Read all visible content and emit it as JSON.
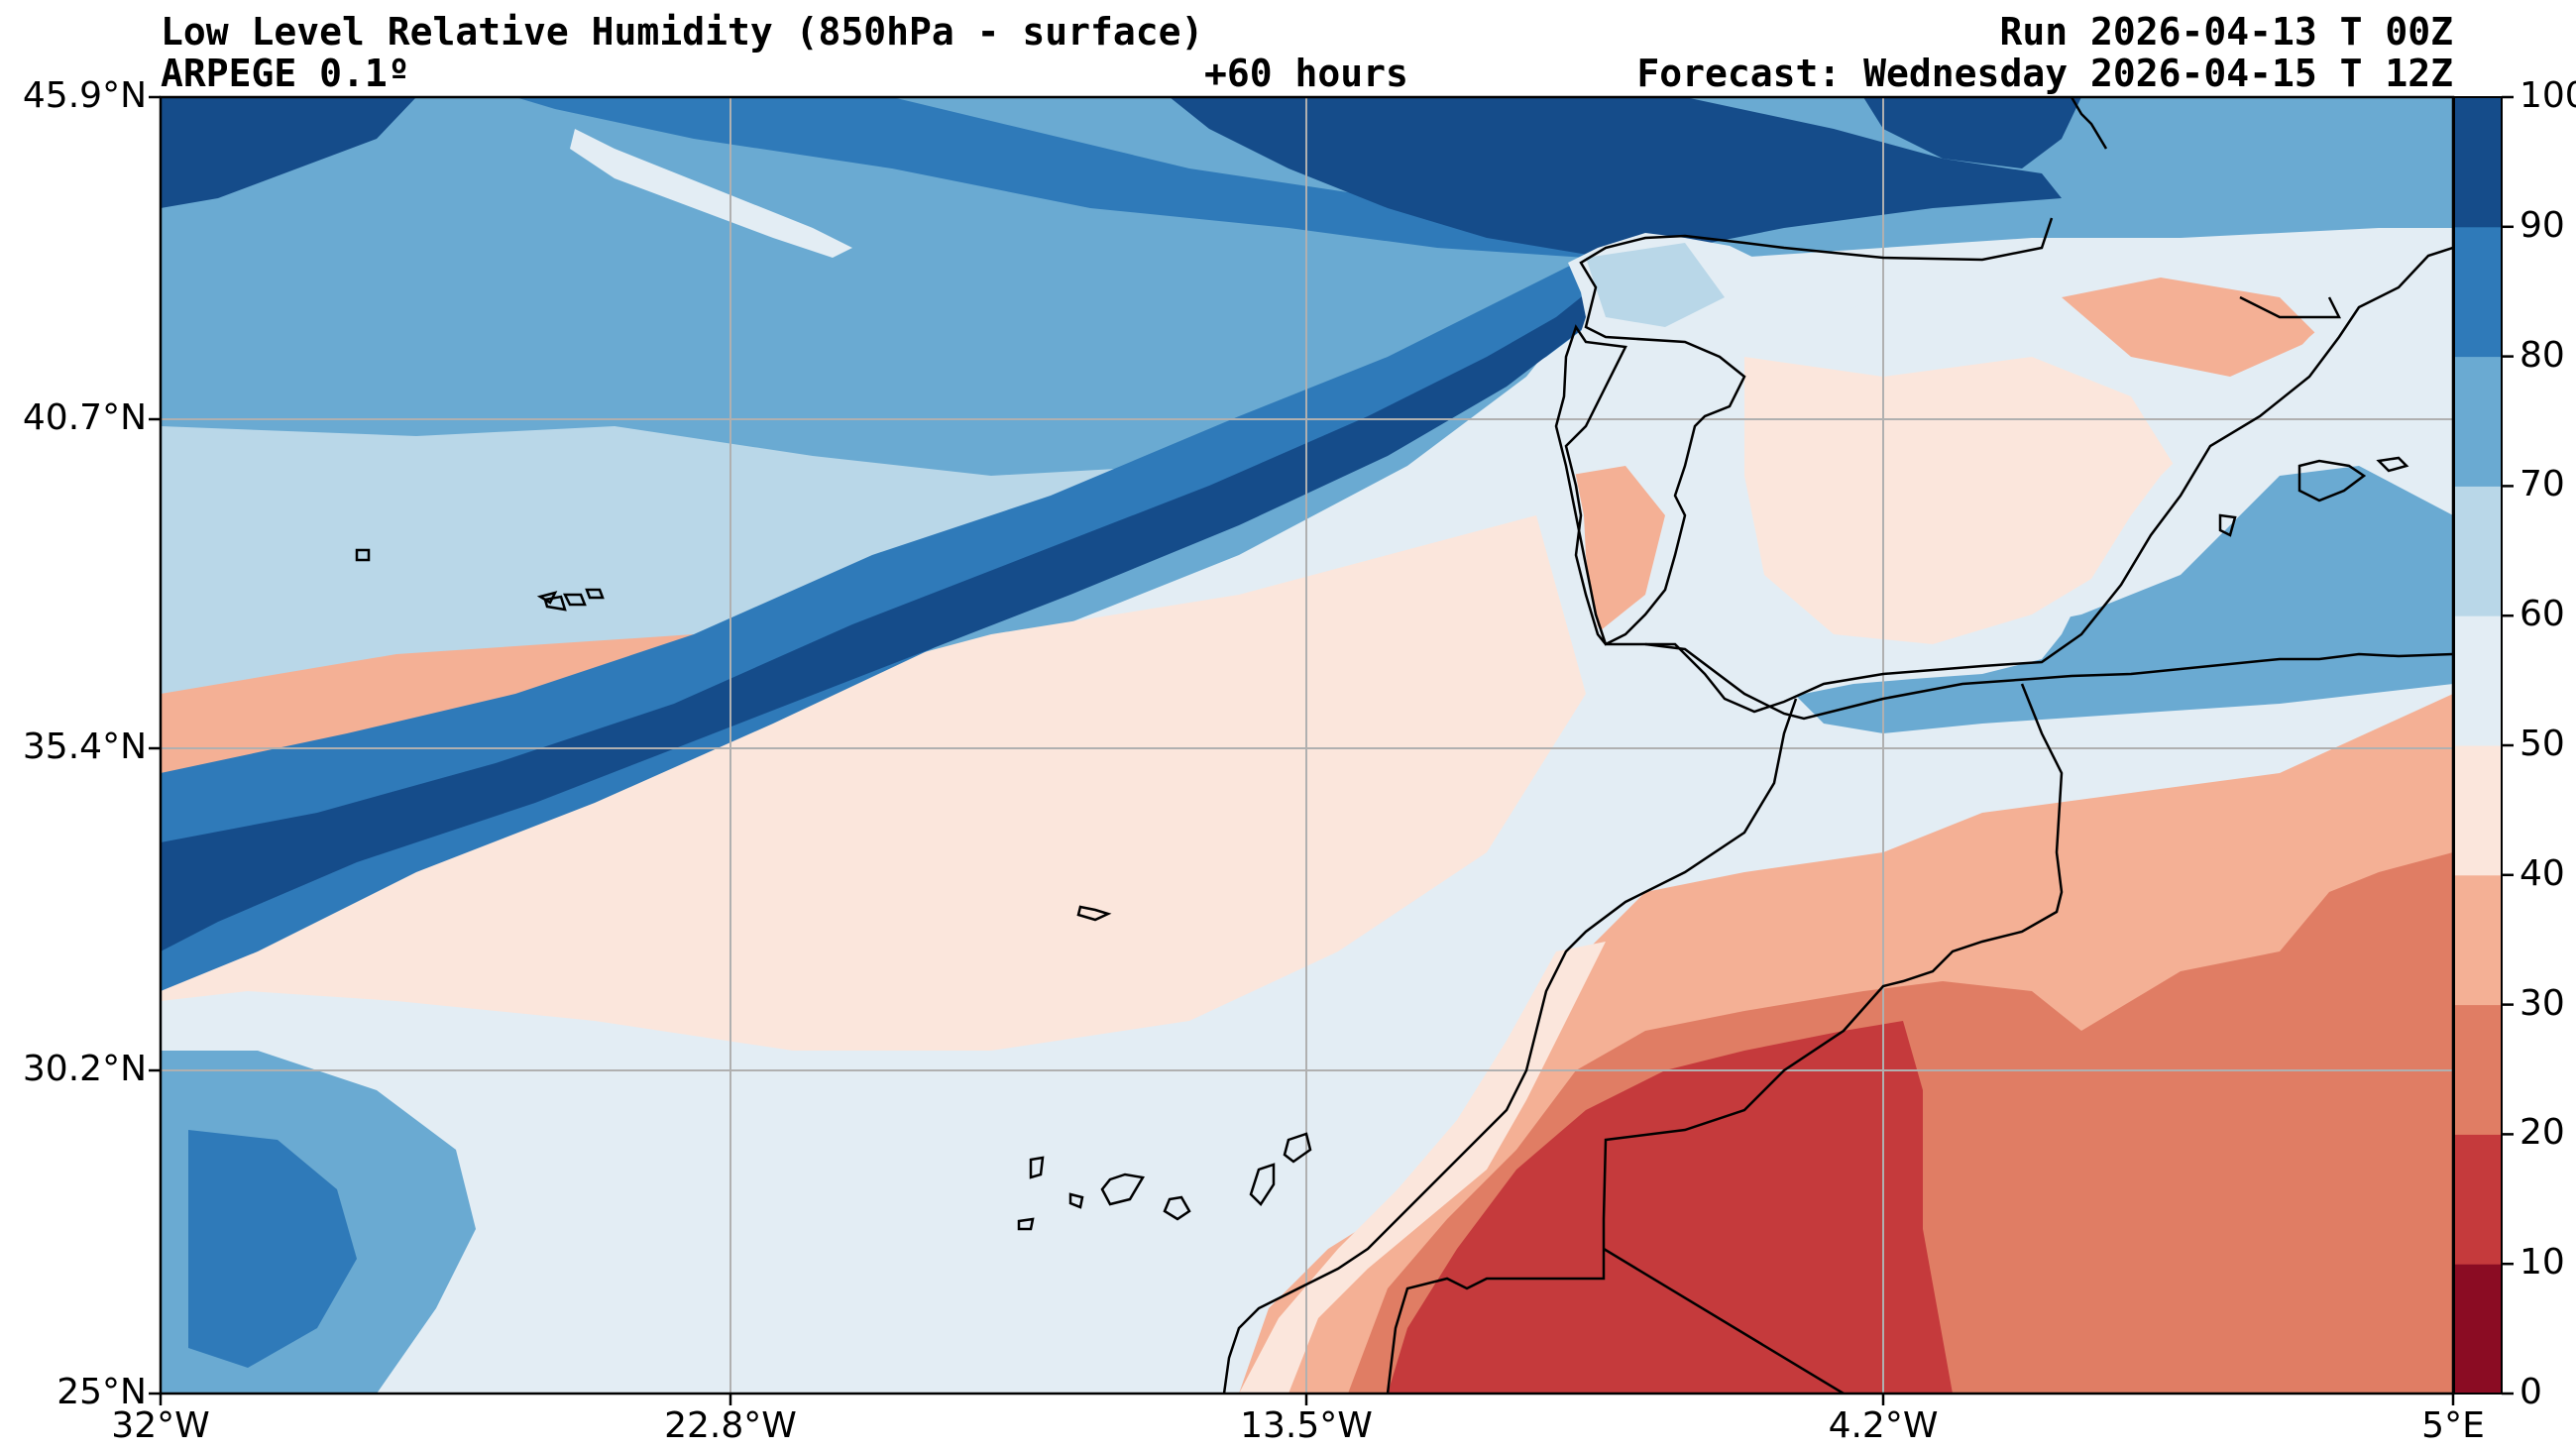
{
  "header": {
    "title": "Low Level Relative Humidity (850hPa - surface)",
    "model": "ARPEGE 0.1º",
    "lead_time": "+60 hours",
    "run": "Run 2026-04-13 T 00Z",
    "forecast": "Forecast: Wednesday 2026-04-15 T 12Z"
  },
  "axes": {
    "lat_labels": [
      "45.9°N",
      "40.7°N",
      "35.4°N",
      "30.2°N",
      "25°N"
    ],
    "lon_labels": [
      "32°W",
      "22.8°W",
      "13.5°W",
      "4.2°W",
      "5°E"
    ]
  },
  "colorbar": {
    "ticks": [
      "100",
      "90",
      "80",
      "70",
      "60",
      "50",
      "40",
      "30",
      "20",
      "10",
      "0"
    ],
    "colors_low_to_high": [
      "#8b0c23",
      "#c53a3c",
      "#e07d64",
      "#f4b095",
      "#fbe6dc",
      "#e3edf4",
      "#b9d7e8",
      "#6aaad2",
      "#2f7ab9",
      "#154c8a"
    ]
  },
  "map": {
    "lon_range": [
      -32,
      5
    ],
    "lat_range": [
      25,
      45.9
    ],
    "variable": "relative humidity %"
  }
}
